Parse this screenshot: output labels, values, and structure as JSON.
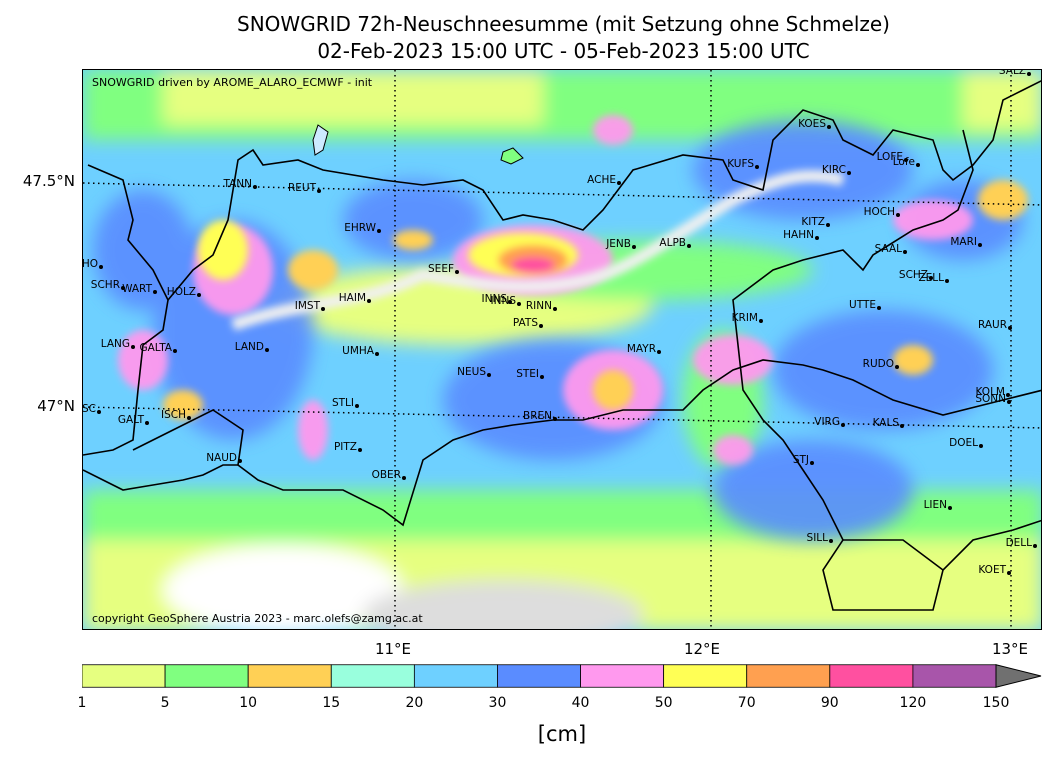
{
  "title_line1": "SNOWGRID 72h-Neuschneesumme (mit Setzung ohne Schmelze)",
  "title_line2": "02-Feb-2023 15:00 UTC - 05-Feb-2023 15:00 UTC",
  "credit_top": "SNOWGRID driven by AROME_ALARO_ECMWF - init",
  "credit_bottom": "copyright GeoSphere Austria 2023 - marc.olefs@zamg.ac.at",
  "lat_labels": [
    "47.5°N",
    "47°N"
  ],
  "lon_labels": [
    "11°E",
    "12°E",
    "13°E"
  ],
  "stations": [
    {
      "name": "TANN"
    },
    {
      "name": "REUT"
    },
    {
      "name": "EHRW"
    },
    {
      "name": "ACHE"
    },
    {
      "name": "KUFS"
    },
    {
      "name": "KOES"
    },
    {
      "name": "KIRC"
    },
    {
      "name": "LOFE"
    },
    {
      "name": "Lofe"
    },
    {
      "name": "SALZ"
    },
    {
      "name": "SCHO"
    },
    {
      "name": "SCHR"
    },
    {
      "name": "WART"
    },
    {
      "name": "HOLZ"
    },
    {
      "name": "SEEF"
    },
    {
      "name": "JENB"
    },
    {
      "name": "ALPB"
    },
    {
      "name": "KITZ"
    },
    {
      "name": "HAHN"
    },
    {
      "name": "HOCH"
    },
    {
      "name": "SAAL"
    },
    {
      "name": "MARI"
    },
    {
      "name": "SCHZ"
    },
    {
      "name": "ZELL"
    },
    {
      "name": "IMST"
    },
    {
      "name": "HAIM"
    },
    {
      "name": "INNS"
    },
    {
      "name": "INNS"
    },
    {
      "name": "RINN"
    },
    {
      "name": "PATS"
    },
    {
      "name": "KRIM"
    },
    {
      "name": "UTTE"
    },
    {
      "name": "RAUR"
    },
    {
      "name": "LANG"
    },
    {
      "name": "GALTA"
    },
    {
      "name": "LAND"
    },
    {
      "name": "UMHA"
    },
    {
      "name": "MAYR"
    },
    {
      "name": "NEUS"
    },
    {
      "name": "STEI"
    },
    {
      "name": "RUDO"
    },
    {
      "name": "KOLM"
    },
    {
      "name": "SONN"
    },
    {
      "name": "GASC"
    },
    {
      "name": "GALT"
    },
    {
      "name": "ISCH"
    },
    {
      "name": "STLI"
    },
    {
      "name": "BREN"
    },
    {
      "name": "VIRG"
    },
    {
      "name": "KALS"
    },
    {
      "name": "PITZ"
    },
    {
      "name": "DOEL"
    },
    {
      "name": "NAUD"
    },
    {
      "name": "STJ"
    },
    {
      "name": "OBER"
    },
    {
      "name": "LIEN"
    },
    {
      "name": "SILL"
    },
    {
      "name": "DELL"
    },
    {
      "name": "KOET"
    }
  ],
  "colorbar": {
    "unit": "[cm]",
    "tick_labels": [
      "1",
      "5",
      "10",
      "15",
      "20",
      "30",
      "40",
      "50",
      "70",
      "90",
      "120",
      "150"
    ],
    "colors": [
      "#e6ff80",
      "#80ff80",
      "#ffd055",
      "#99ffdd",
      "#6ed0ff",
      "#5a8cff",
      "#ff99ee",
      "#ffff55",
      "#ffa050",
      "#ff50a0",
      "#a855aa"
    ],
    "extend_color": "#707070"
  }
}
